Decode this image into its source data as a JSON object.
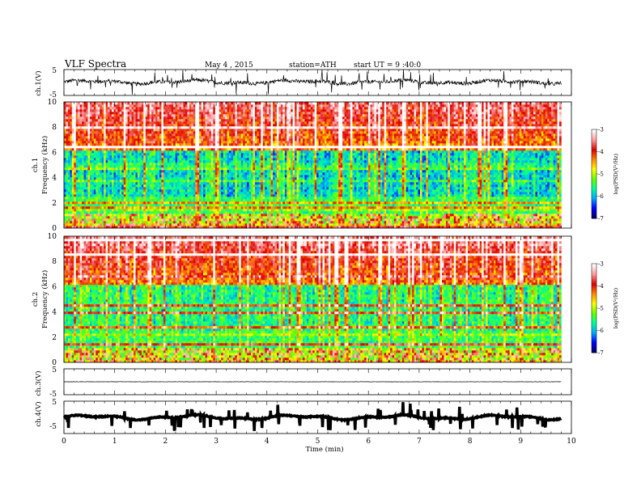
{
  "header": {
    "title": "VLF Spectra",
    "date": "May 4 , 2015",
    "station": "station=ATH",
    "start": "start UT = 9 :40:0"
  },
  "chart_data": [
    {
      "type": "line",
      "panel": "ch1-waveform",
      "ylabel": "ch.1(V)",
      "yticks": [
        "5",
        "-5"
      ],
      "ylim": [
        -5,
        5
      ],
      "xlim": [
        0,
        10
      ],
      "x_end": 9.8,
      "baseline": 0.2,
      "noise_amplitude": 1.2,
      "color": "#000000"
    },
    {
      "type": "heatmap",
      "panel": "ch1-spectrogram",
      "ylabel": "ch.1",
      "ylabel2": "Frequency (kHz)",
      "yticks": [
        "0",
        "2",
        "4",
        "6",
        "8",
        "10"
      ],
      "ylim": [
        0,
        10
      ],
      "xlim": [
        0,
        10
      ],
      "x_end": 9.8,
      "colorbar": {
        "label": "log(PSD(V²/Hz)",
        "ticks": [
          "-3",
          "-4",
          "-5",
          "-6",
          "-7"
        ],
        "range": [
          -7,
          -3
        ],
        "colors": [
          "#000066",
          "#0000ff",
          "#00aaff",
          "#00ff99",
          "#66ff00",
          "#ffff00",
          "#ff8800",
          "#dd0000",
          "#ff9999",
          "#ffffff"
        ]
      }
    },
    {
      "type": "heatmap",
      "panel": "ch2-spectrogram",
      "ylabel": "ch.2",
      "ylabel2": "Frequency (kHz)",
      "yticks": [
        "0",
        "2",
        "4",
        "6",
        "8",
        "10"
      ],
      "ylim": [
        0,
        10
      ],
      "xlim": [
        0,
        10
      ],
      "x_end": 9.8,
      "colorbar": {
        "label": "log(PSD(V²/Hz)",
        "ticks": [
          "-3",
          "-4",
          "-5",
          "-6",
          "-7"
        ],
        "range": [
          -7,
          -3
        ],
        "colors": [
          "#000066",
          "#0000ff",
          "#00aaff",
          "#00ff99",
          "#66ff00",
          "#ffff00",
          "#ff8800",
          "#dd0000",
          "#ff9999",
          "#ffffff"
        ]
      }
    },
    {
      "type": "line",
      "panel": "ch3-waveform",
      "ylabel": "ch.3(V)",
      "yticks": [
        "5",
        "-5"
      ],
      "ylim": [
        -5,
        5
      ],
      "xlim": [
        0,
        10
      ],
      "x_end": 9.8,
      "baseline": 0,
      "noise_amplitude": 0.08,
      "color": "#000000"
    },
    {
      "type": "line",
      "panel": "ch4-waveform",
      "ylabel": "ch.4(V)",
      "yticks": [
        "5",
        "-5"
      ],
      "ylim": [
        -5,
        5
      ],
      "xlim": [
        0,
        10
      ],
      "x_end": 9.8,
      "baseline": 0,
      "noise_amplitude": 0.25,
      "color": "#000000"
    }
  ],
  "xaxis": {
    "label": "Time (min)",
    "ticks": [
      "0",
      "1",
      "2",
      "3",
      "4",
      "5",
      "6",
      "7",
      "8",
      "9",
      "10"
    ]
  }
}
